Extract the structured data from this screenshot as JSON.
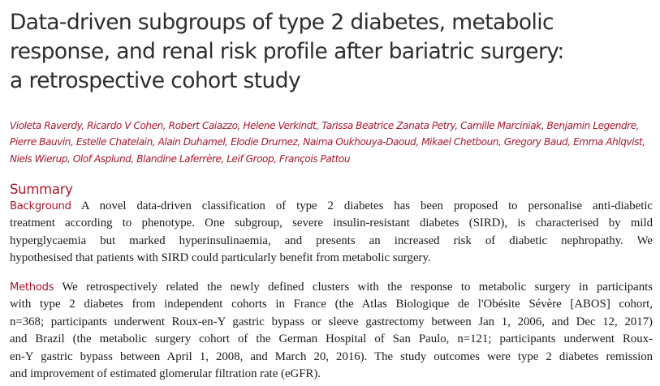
{
  "title_lines": [
    "Data-driven subgroups of type 2 diabetes, metabolic",
    "response, and renal risk profile after bariatric surgery:",
    "a retrospective cohort study"
  ],
  "author_lines": [
    "Violeta Raverdy, Ricardo V Cohen, Robert Caiazzo, Helene Verkindt, Tarissa Beatrice Zanata Petry, Camille Marciniak, Benjamin Legendre,",
    "Pierre Bauvin, Estelle Chatelain, Alain Duhamel, Elodie Drumez, Naima Oukhouya-Daoud, Mikael Chetboun, Gregory Baud, Emma Ahlqvist,",
    "Niels Wierup, Olof Asplund, Blandine Laferrère, Leif Groop, François Pattou"
  ],
  "summary_heading": "Summary",
  "background": {
    "label": "Background",
    "lines": [
      " A novel data-driven classification of type 2 diabetes has been proposed to personalise anti-diabetic",
      "treatment according to phenotype. One subgroup, severe insulin-resistant diabetes (SIRD), is characterised by mild",
      "hyperglycaemia but marked hyperinsulinaemia, and presents an increased risk of diabetic nephropathy. We",
      "hypothesised that patients with SIRD could particularly benefit from metabolic surgery."
    ]
  },
  "methods": {
    "label": "Methods",
    "lines": [
      " We retrospectively related the newly defined clusters with the response to metabolic surgery in participants",
      "with type 2 diabetes from independent cohorts in France (the Atlas Biologique de l'Obésite Sévère [ABOS] cohort,",
      "n=368; participants underwent Roux-en-Y gastric bypass or sleeve gastrectomy between Jan 1, 2006, and Dec 12, 2017)",
      "and Brazil (the metabolic surgery cohort of the German Hospital of San Paulo, n=121; participants underwent Roux-",
      "en-Y gastric bypass between April 1, 2008, and March 20, 2016). The study outcomes were type 2 diabetes remission",
      "and improvement of estimated glomerular filtration rate (eGFR)."
    ]
  }
}
